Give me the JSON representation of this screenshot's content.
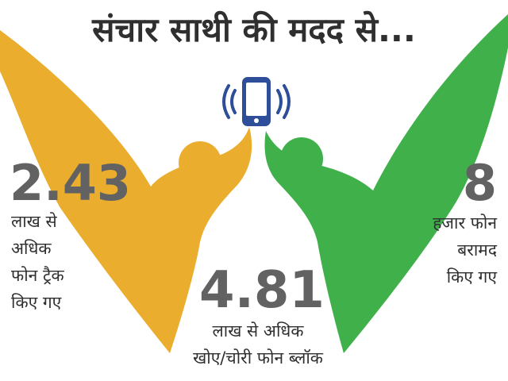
{
  "title": "संचार साथी की मदद से...",
  "colors": {
    "orange": "#EAAD2D",
    "green": "#3FB04A",
    "phone_blue": "#2E4E9A",
    "number_gray": "#626262",
    "text_dark": "#2f2f2f"
  },
  "icons": [
    "mobile-phone-icon",
    "signal-wave-icon"
  ],
  "stats": {
    "left": {
      "number": "2.43",
      "lines": [
        "लाख से",
        "अधिक",
        "फोन ट्रैक",
        "किए गए"
      ]
    },
    "center": {
      "number": "4.81",
      "lines": [
        "लाख से अधिक",
        "खोए/चोरी फोन ब्लॉक"
      ]
    },
    "right": {
      "number": "8",
      "lines": [
        "हजार फोन",
        "बरामद",
        "किए गए"
      ]
    }
  }
}
